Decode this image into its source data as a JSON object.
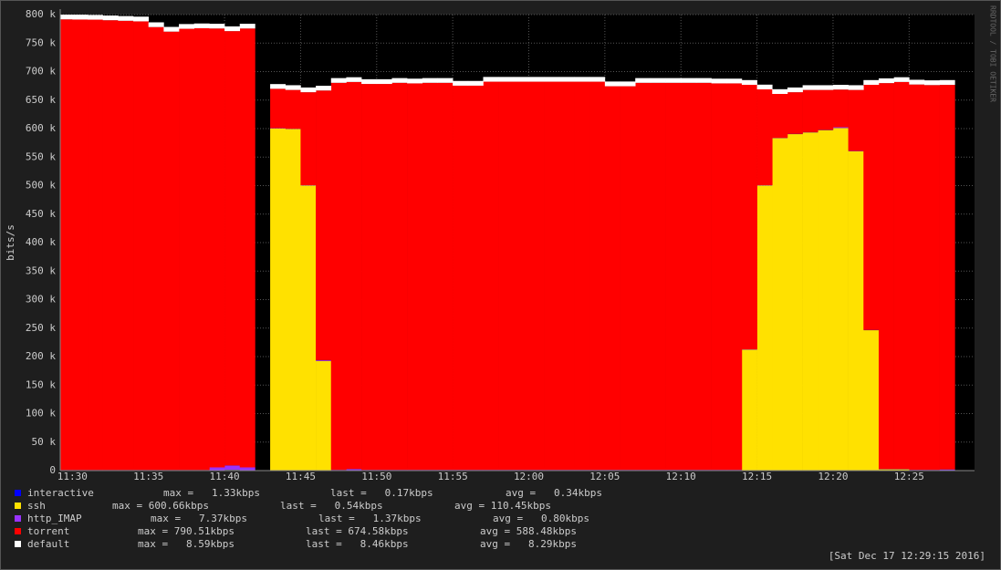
{
  "chart_data": {
    "type": "area",
    "stacked": true,
    "y_label": "bits/s",
    "watermark": "RRDTOOL / TOBI OETIKER",
    "timestamp": "[Sat Dec 17 12:29:15 2016]",
    "x": [
      689,
      690,
      691,
      692,
      693,
      694,
      695,
      696,
      697,
      698,
      699,
      700,
      701,
      702,
      703,
      704,
      705,
      706,
      707,
      708,
      709,
      710,
      711,
      712,
      713,
      714,
      715,
      716,
      717,
      718,
      719,
      720,
      721,
      722,
      723,
      724,
      725,
      726,
      727,
      728,
      729,
      730,
      731,
      732,
      733,
      734,
      735,
      736,
      737,
      738,
      739,
      740,
      741,
      742,
      743,
      744,
      745,
      746,
      747,
      748
    ],
    "xlim": [
      689.2,
      749.3
    ],
    "xticks": [
      {
        "value": 690,
        "label": "11:30"
      },
      {
        "value": 695,
        "label": "11:35"
      },
      {
        "value": 700,
        "label": "11:40"
      },
      {
        "value": 705,
        "label": "11:45"
      },
      {
        "value": 710,
        "label": "11:50"
      },
      {
        "value": 715,
        "label": "11:55"
      },
      {
        "value": 720,
        "label": "12:00"
      },
      {
        "value": 725,
        "label": "12:05"
      },
      {
        "value": 730,
        "label": "12:10"
      },
      {
        "value": 735,
        "label": "12:15"
      },
      {
        "value": 740,
        "label": "12:20"
      },
      {
        "value": 745,
        "label": "12:25"
      }
    ],
    "ylim": [
      0,
      800000
    ],
    "yticks": [
      0,
      {
        "value": 50000,
        "label": "50 k"
      },
      {
        "value": 100000,
        "label": "100 k"
      },
      {
        "value": 150000,
        "label": "150 k"
      },
      {
        "value": 200000,
        "label": "200 k"
      },
      {
        "value": 250000,
        "label": "250 k"
      },
      {
        "value": 300000,
        "label": "300 k"
      },
      {
        "value": 350000,
        "label": "350 k"
      },
      {
        "value": 400000,
        "label": "400 k"
      },
      {
        "value": 450000,
        "label": "450 k"
      },
      {
        "value": 500000,
        "label": "500 k"
      },
      {
        "value": 550000,
        "label": "550 k"
      },
      {
        "value": 600000,
        "label": "600 k"
      },
      {
        "value": 650000,
        "label": "650 k"
      },
      {
        "value": 700000,
        "label": "700 k"
      },
      {
        "value": 750000,
        "label": "750 k"
      },
      {
        "value": 800000,
        "label": "800 k"
      }
    ],
    "grid": true,
    "series": [
      {
        "name": "interactive",
        "color": "#0000ff",
        "stats": [
          "max =   1.33kbps",
          "last =   0.17kbps",
          "avg =   0.34kbps"
        ],
        "values": [
          300,
          300,
          300,
          300,
          300,
          300,
          300,
          300,
          300,
          300,
          300,
          1330,
          300,
          null,
          300,
          300,
          300,
          300,
          300,
          300,
          300,
          300,
          300,
          300,
          300,
          300,
          300,
          300,
          300,
          300,
          300,
          300,
          300,
          300,
          300,
          300,
          300,
          300,
          300,
          300,
          300,
          300,
          300,
          300,
          300,
          300,
          300,
          300,
          300,
          300,
          300,
          300,
          300,
          300,
          300,
          300,
          300,
          300,
          170,
          null
        ]
      },
      {
        "name": "ssh",
        "color": "#ffe100",
        "stats": [
          "max = 600.66kbps",
          "last =   0.54kbps",
          "avg = 110.45kbps"
        ],
        "values": [
          300,
          300,
          300,
          300,
          300,
          300,
          300,
          300,
          300,
          300,
          300,
          300,
          300,
          null,
          600000,
          599000,
          500000,
          192000,
          500,
          500,
          500,
          500,
          500,
          500,
          500,
          500,
          500,
          500,
          500,
          500,
          500,
          500,
          500,
          500,
          500,
          500,
          500,
          500,
          500,
          500,
          500,
          500,
          500,
          500,
          500,
          212000,
          500000,
          583000,
          590000,
          593000,
          597000,
          600660,
          560000,
          246000,
          2000,
          2000,
          540,
          540,
          540,
          null
        ]
      },
      {
        "name": "http_IMAP",
        "color": "#9933ff",
        "stats": [
          "max =   7.37kbps",
          "last =   1.37kbps",
          "avg =   0.80kbps"
        ],
        "values": [
          500,
          500,
          500,
          500,
          500,
          500,
          500,
          500,
          500,
          500,
          5000,
          7370,
          5000,
          null,
          500,
          500,
          500,
          1500,
          500,
          2000,
          500,
          500,
          500,
          500,
          500,
          500,
          500,
          500,
          500,
          500,
          500,
          500,
          500,
          500,
          500,
          500,
          500,
          500,
          500,
          500,
          500,
          500,
          500,
          500,
          500,
          500,
          500,
          500,
          500,
          500,
          500,
          1500,
          500,
          500,
          500,
          500,
          500,
          500,
          1370,
          null
        ]
      },
      {
        "name": "torrent",
        "color": "#ff0000",
        "stats": [
          "max = 790.51kbps",
          "last = 674.58kbps",
          "avg = 588.48kbps"
        ],
        "values": [
          790510,
          790200,
          790000,
          789000,
          788000,
          787000,
          777000,
          769000,
          774000,
          775000,
          770000,
          762000,
          770000,
          null,
          69000,
          68000,
          163000,
          473000,
          679000,
          679000,
          677000,
          677000,
          679000,
          678000,
          679000,
          679000,
          674000,
          674000,
          681000,
          681000,
          681000,
          681000,
          681000,
          681000,
          681000,
          681000,
          673000,
          673000,
          679000,
          679000,
          679000,
          679000,
          679000,
          678000,
          678000,
          464000,
          168000,
          77000,
          73000,
          74000,
          70000,
          66000,
          107000,
          430000,
          677000,
          679000,
          676000,
          675000,
          674580,
          null
        ]
      },
      {
        "name": "default",
        "color": "#ffffff",
        "stats": [
          "max =   8.59kbps",
          "last =   8.46kbps",
          "avg =   8.29kbps"
        ],
        "values": [
          8300,
          8590,
          8300,
          8300,
          8300,
          8300,
          8300,
          8300,
          8300,
          8300,
          8300,
          8300,
          8300,
          null,
          8300,
          8300,
          8300,
          8300,
          8300,
          8300,
          8300,
          8300,
          8300,
          8300,
          8300,
          8300,
          8300,
          8300,
          8300,
          8300,
          8300,
          8300,
          8300,
          8300,
          8300,
          8300,
          8300,
          8300,
          8300,
          8300,
          8300,
          8300,
          8300,
          8300,
          8300,
          8300,
          8300,
          8300,
          8300,
          8300,
          8300,
          8300,
          8300,
          8300,
          8300,
          8300,
          8300,
          8300,
          8460,
          null
        ]
      }
    ]
  }
}
